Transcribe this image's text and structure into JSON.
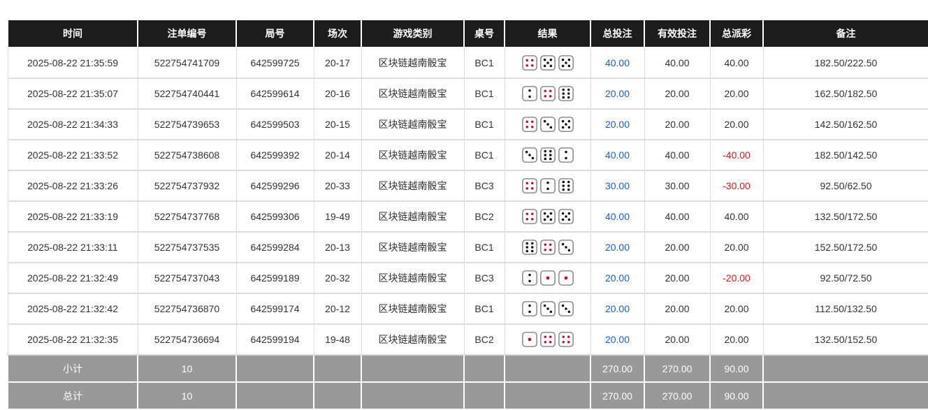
{
  "headers": [
    "时间",
    "注单编号",
    "局号",
    "场次",
    "游戏类别",
    "桌号",
    "结果",
    "总投注",
    "有效投注",
    "总派彩",
    "备注"
  ],
  "rows": [
    {
      "time": "2025-08-22 21:35:59",
      "bet_id": "522754741709",
      "round": "642599725",
      "session": "20-17",
      "game": "区块链越南骰宝",
      "table": "BC1",
      "dice": [
        4,
        5,
        5
      ],
      "bet": "40.00",
      "valid": "40.00",
      "payout": "40.00",
      "note": "182.50/222.50"
    },
    {
      "time": "2025-08-22 21:35:07",
      "bet_id": "522754740441",
      "round": "642599614",
      "session": "20-16",
      "game": "区块链越南骰宝",
      "table": "BC1",
      "dice": [
        2,
        4,
        6
      ],
      "bet": "20.00",
      "valid": "20.00",
      "payout": "20.00",
      "note": "162.50/182.50"
    },
    {
      "time": "2025-08-22 21:34:33",
      "bet_id": "522754739653",
      "round": "642599503",
      "session": "20-15",
      "game": "区块链越南骰宝",
      "table": "BC1",
      "dice": [
        4,
        3,
        5
      ],
      "bet": "20.00",
      "valid": "20.00",
      "payout": "20.00",
      "note": "142.50/162.50"
    },
    {
      "time": "2025-08-22 21:33:52",
      "bet_id": "522754738608",
      "round": "642599392",
      "session": "20-14",
      "game": "区块链越南骰宝",
      "table": "BC1",
      "dice": [
        3,
        6,
        2
      ],
      "bet": "40.00",
      "valid": "40.00",
      "payout": "-40.00",
      "note": "182.50/142.50"
    },
    {
      "time": "2025-08-22 21:33:26",
      "bet_id": "522754737932",
      "round": "642599296",
      "session": "20-33",
      "game": "区块链越南骰宝",
      "table": "BC3",
      "dice": [
        4,
        2,
        6
      ],
      "bet": "30.00",
      "valid": "30.00",
      "payout": "-30.00",
      "note": "92.50/62.50"
    },
    {
      "time": "2025-08-22 21:33:19",
      "bet_id": "522754737768",
      "round": "642599306",
      "session": "19-49",
      "game": "区块链越南骰宝",
      "table": "BC2",
      "dice": [
        4,
        5,
        5
      ],
      "bet": "40.00",
      "valid": "40.00",
      "payout": "40.00",
      "note": "132.50/172.50"
    },
    {
      "time": "2025-08-22 21:33:11",
      "bet_id": "522754737535",
      "round": "642599284",
      "session": "20-13",
      "game": "区块链越南骰宝",
      "table": "BC1",
      "dice": [
        6,
        4,
        3
      ],
      "bet": "20.00",
      "valid": "20.00",
      "payout": "20.00",
      "note": "152.50/172.50"
    },
    {
      "time": "2025-08-22 21:32:49",
      "bet_id": "522754737043",
      "round": "642599189",
      "session": "20-32",
      "game": "区块链越南骰宝",
      "table": "BC3",
      "dice": [
        2,
        1,
        1
      ],
      "bet": "20.00",
      "valid": "20.00",
      "payout": "-20.00",
      "note": "92.50/72.50"
    },
    {
      "time": "2025-08-22 21:32:42",
      "bet_id": "522754736870",
      "round": "642599174",
      "session": "20-12",
      "game": "区块链越南骰宝",
      "table": "BC1",
      "dice": [
        2,
        3,
        3
      ],
      "bet": "20.00",
      "valid": "20.00",
      "payout": "20.00",
      "note": "112.50/132.50"
    },
    {
      "time": "2025-08-22 21:32:35",
      "bet_id": "522754736694",
      "round": "642599194",
      "session": "19-48",
      "game": "区块链越南骰宝",
      "table": "BC2",
      "dice": [
        1,
        4,
        4
      ],
      "bet": "20.00",
      "valid": "20.00",
      "payout": "20.00",
      "note": "132.50/152.50"
    }
  ],
  "subtotal": {
    "label": "小计",
    "count": "10",
    "bet": "270.00",
    "valid": "270.00",
    "payout": "90.00"
  },
  "total": {
    "label": "总计",
    "count": "10",
    "bet": "270.00",
    "valid": "270.00",
    "payout": "90.00"
  },
  "colors": {
    "header": "#1c1c1c",
    "summary": "#999999",
    "bet": "#1a5fd0",
    "negative": "#e0141e",
    "red_pip": "#c0102a"
  }
}
